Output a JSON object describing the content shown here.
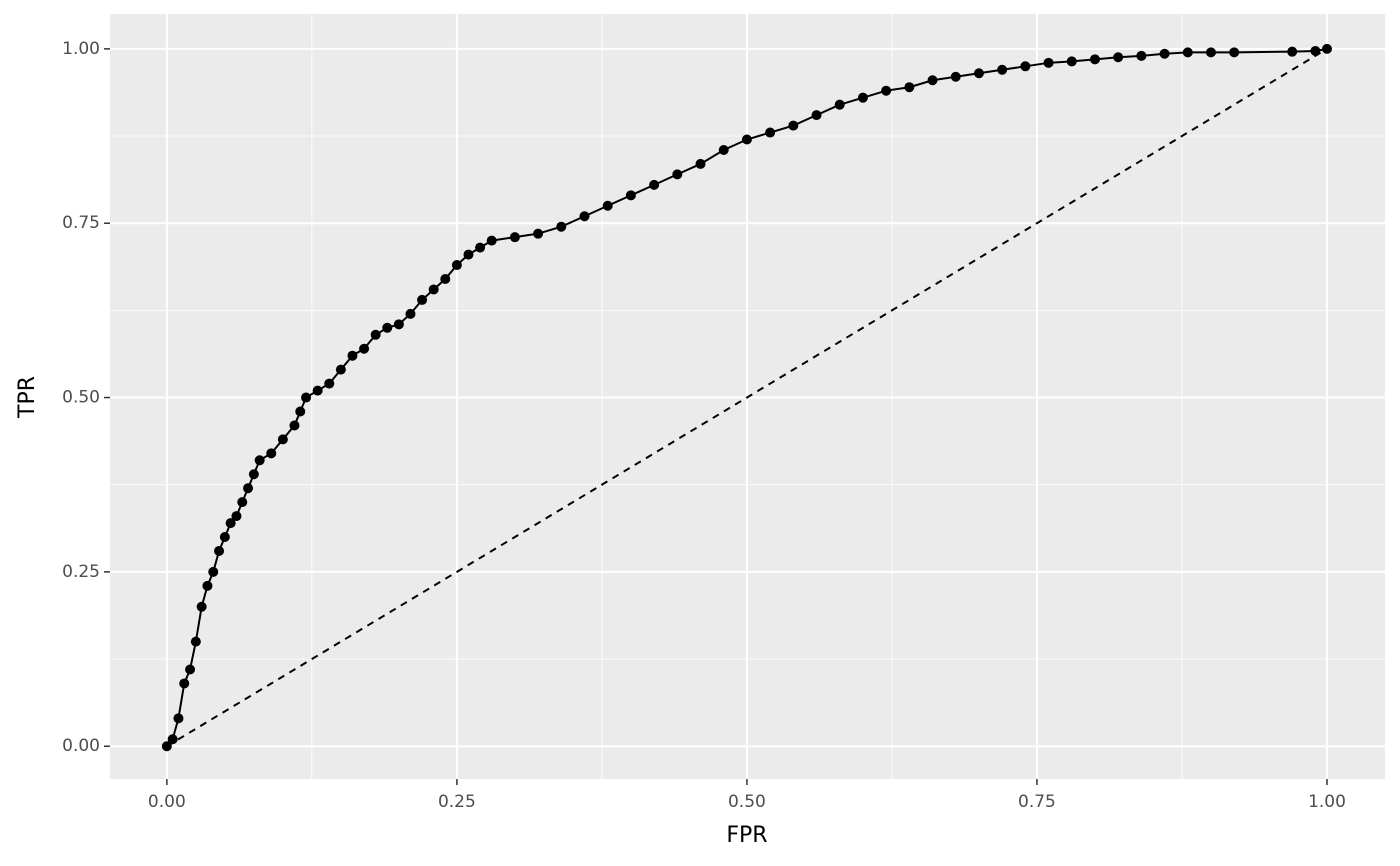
{
  "chart_data": {
    "type": "line",
    "x_label": "FPR",
    "y_label": "TPR",
    "xlim": [
      -0.049,
      1.05
    ],
    "ylim": [
      -0.047,
      1.05
    ],
    "xticks": [
      {
        "value": 0,
        "label": "0.00"
      },
      {
        "value": 0.25,
        "label": "0.25"
      },
      {
        "value": 0.5,
        "label": "0.50"
      },
      {
        "value": 0.75,
        "label": "0.75"
      },
      {
        "value": 1,
        "label": "1.00"
      }
    ],
    "yticks": [
      {
        "value": 0,
        "label": "0.00"
      },
      {
        "value": 0.25,
        "label": "0.25"
      },
      {
        "value": 0.5,
        "label": "0.50"
      },
      {
        "value": 0.75,
        "label": "0.75"
      },
      {
        "value": 1,
        "label": "1.00"
      }
    ],
    "xminor": [
      0.125,
      0.375,
      0.625,
      0.875
    ],
    "yminor": [
      0.125,
      0.375,
      0.625,
      0.875
    ],
    "grid": true,
    "reference_line": {
      "x": [
        0,
        1
      ],
      "y": [
        0,
        1
      ],
      "color": "#000000"
    },
    "series": [
      {
        "color": "#000000",
        "x": [
          0,
          0.005,
          0.01,
          0.015,
          0.02,
          0.025,
          0.03,
          0.035,
          0.04,
          0.045,
          0.05,
          0.055,
          0.06,
          0.065,
          0.07,
          0.075,
          0.08,
          0.09,
          0.1,
          0.11,
          0.115,
          0.12,
          0.13,
          0.14,
          0.15,
          0.16,
          0.17,
          0.18,
          0.19,
          0.2,
          0.21,
          0.22,
          0.23,
          0.24,
          0.25,
          0.26,
          0.27,
          0.28,
          0.3,
          0.32,
          0.34,
          0.36,
          0.38,
          0.4,
          0.42,
          0.44,
          0.46,
          0.48,
          0.5,
          0.52,
          0.54,
          0.56,
          0.58,
          0.6,
          0.62,
          0.64,
          0.66,
          0.68,
          0.7,
          0.72,
          0.74,
          0.76,
          0.78,
          0.8,
          0.82,
          0.84,
          0.86,
          0.88,
          0.9,
          0.92,
          0.97,
          0.99,
          1
        ],
        "values": [
          0,
          0.01,
          0.04,
          0.09,
          0.11,
          0.15,
          0.2,
          0.23,
          0.25,
          0.28,
          0.3,
          0.32,
          0.33,
          0.35,
          0.37,
          0.39,
          0.41,
          0.42,
          0.44,
          0.46,
          0.48,
          0.5,
          0.51,
          0.52,
          0.54,
          0.56,
          0.57,
          0.59,
          0.6,
          0.605,
          0.62,
          0.64,
          0.655,
          0.67,
          0.69,
          0.705,
          0.715,
          0.725,
          0.73,
          0.735,
          0.745,
          0.76,
          0.775,
          0.79,
          0.805,
          0.82,
          0.835,
          0.855,
          0.87,
          0.88,
          0.89,
          0.905,
          0.92,
          0.93,
          0.94,
          0.945,
          0.955,
          0.96,
          0.965,
          0.97,
          0.975,
          0.98,
          0.982,
          0.985,
          0.988,
          0.99,
          0.993,
          0.995,
          0.995,
          0.995,
          0.996,
          0.997,
          1
        ]
      }
    ]
  }
}
